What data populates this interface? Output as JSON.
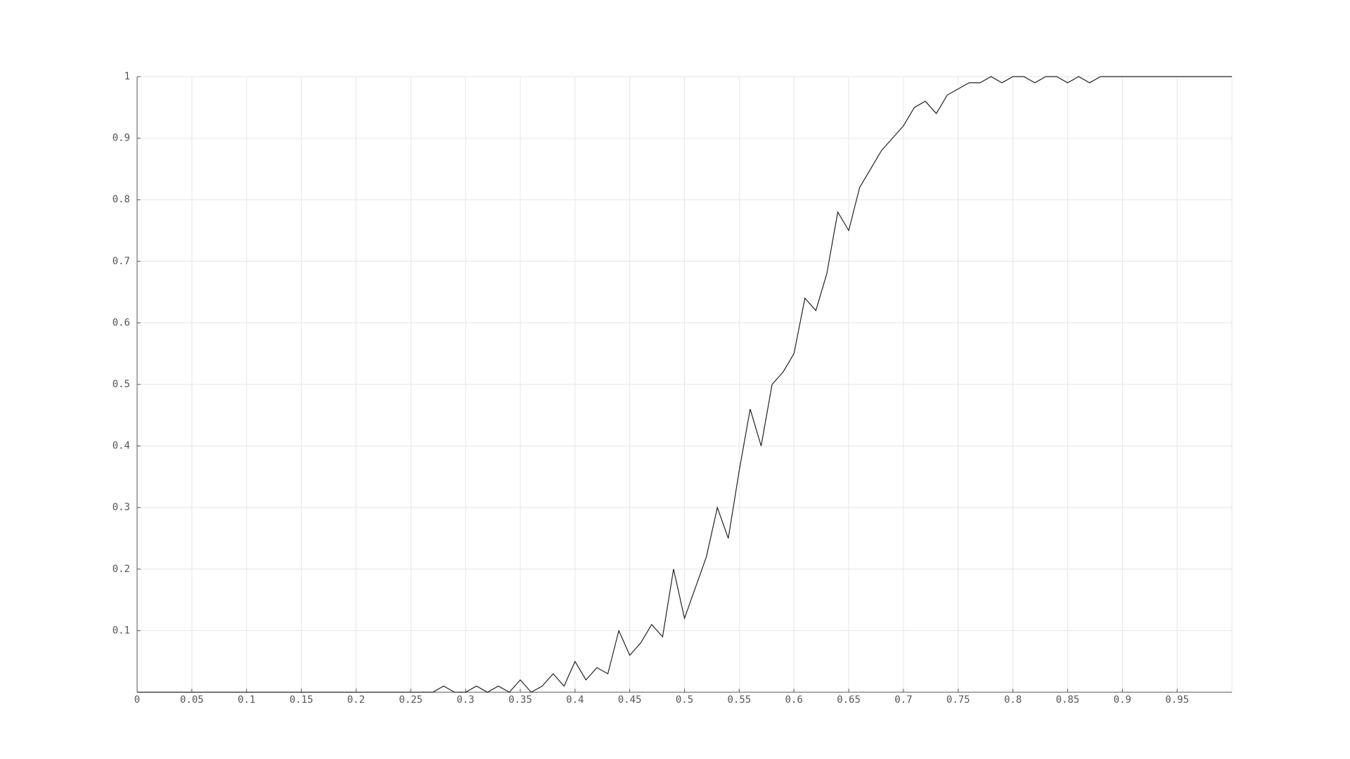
{
  "chart_data": {
    "type": "line",
    "x": [
      0,
      0.01,
      0.02,
      0.03,
      0.04,
      0.05,
      0.06,
      0.07,
      0.08,
      0.09,
      0.1,
      0.11,
      0.12,
      0.13,
      0.14,
      0.15,
      0.16,
      0.17,
      0.18,
      0.19,
      0.2,
      0.21,
      0.22,
      0.23,
      0.24,
      0.25,
      0.26,
      0.27,
      0.28,
      0.29,
      0.3,
      0.31,
      0.32,
      0.33,
      0.34,
      0.35,
      0.36,
      0.37,
      0.38,
      0.39,
      0.4,
      0.41,
      0.42,
      0.43,
      0.44,
      0.45,
      0.46,
      0.47,
      0.48,
      0.49,
      0.5,
      0.51,
      0.52,
      0.53,
      0.54,
      0.55,
      0.56,
      0.57,
      0.58,
      0.59,
      0.6,
      0.61,
      0.62,
      0.63,
      0.64,
      0.65,
      0.66,
      0.67,
      0.68,
      0.69,
      0.7,
      0.71,
      0.72,
      0.73,
      0.74,
      0.75,
      0.76,
      0.77,
      0.78,
      0.79,
      0.8,
      0.81,
      0.82,
      0.83,
      0.84,
      0.85,
      0.86,
      0.87,
      0.88,
      0.89,
      0.9,
      0.91,
      0.92,
      0.93,
      0.94,
      0.95,
      0.96,
      0.97,
      0.98,
      0.99,
      1
    ],
    "series": [
      {
        "color": "#222222",
        "values": [
          0,
          0,
          0,
          0,
          0,
          0,
          0,
          0,
          0,
          0,
          0,
          0,
          0,
          0,
          0,
          0,
          0,
          0,
          0,
          0,
          0,
          0,
          0,
          0,
          0,
          0,
          0,
          0,
          0.01,
          0,
          0,
          0.01,
          0,
          0.01,
          0,
          0.02,
          0,
          0.01,
          0.03,
          0.01,
          0.05,
          0.02,
          0.04,
          0.03,
          0.1,
          0.06,
          0.08,
          0.11,
          0.09,
          0.2,
          0.12,
          0.17,
          0.22,
          0.3,
          0.25,
          0.36,
          0.46,
          0.4,
          0.5,
          0.52,
          0.55,
          0.64,
          0.62,
          0.68,
          0.78,
          0.75,
          0.82,
          0.85,
          0.88,
          0.9,
          0.92,
          0.95,
          0.96,
          0.94,
          0.97,
          0.98,
          0.99,
          0.99,
          1,
          0.99,
          1,
          1,
          0.99,
          1,
          1,
          0.99,
          1,
          0.99,
          1,
          1,
          1,
          1,
          1,
          1,
          1,
          1,
          1,
          1,
          1,
          1,
          1
        ]
      }
    ],
    "xlim": [
      0,
      1
    ],
    "ylim": [
      0,
      1
    ],
    "xticks": [
      0,
      0.05,
      0.1,
      0.15,
      0.2,
      0.25,
      0.3,
      0.35,
      0.4,
      0.45,
      0.5,
      0.55,
      0.6,
      0.65,
      0.7,
      0.75,
      0.8,
      0.85,
      0.9,
      0.95
    ],
    "yticks": [
      0.1,
      0.2,
      0.3,
      0.4,
      0.5,
      0.6,
      0.7,
      0.8,
      0.9,
      1
    ],
    "grid": true
  }
}
